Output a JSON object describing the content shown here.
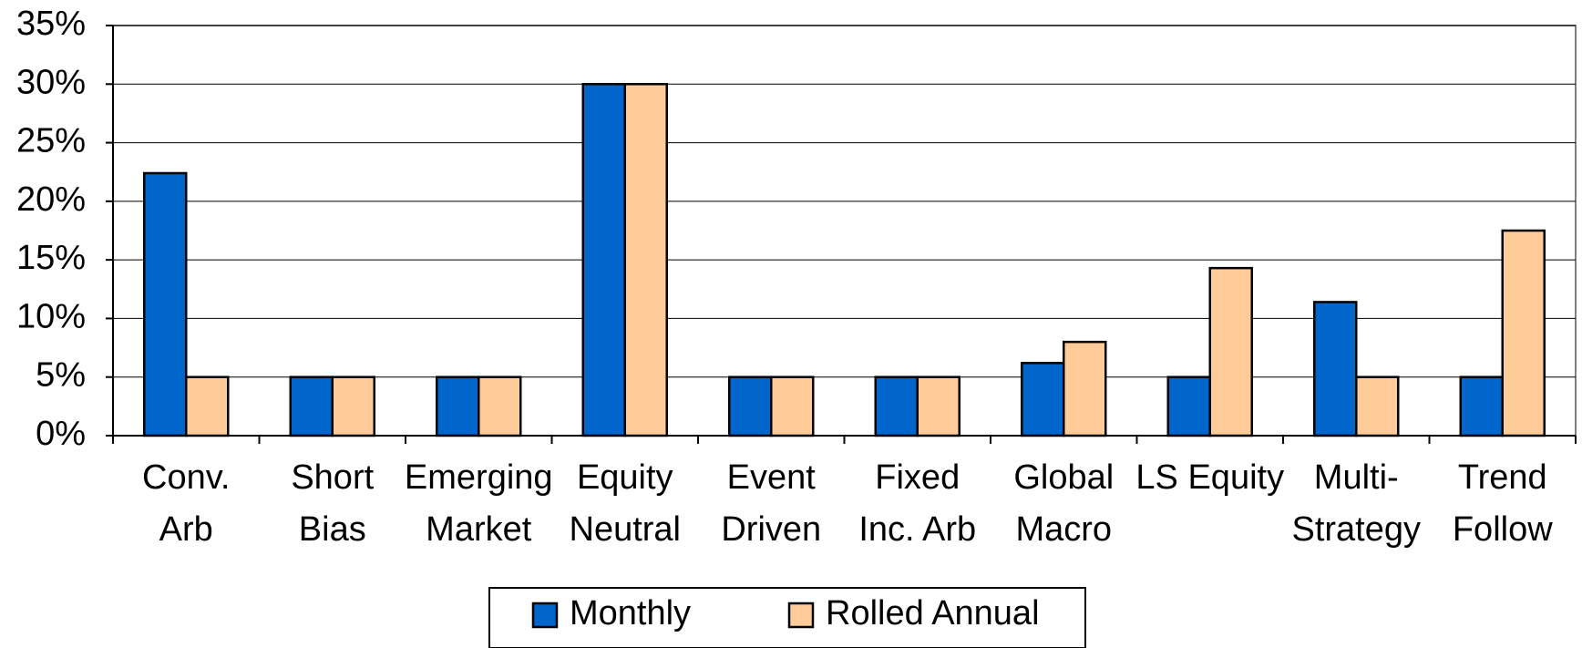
{
  "chart_data": {
    "type": "bar",
    "categories": [
      "Conv.\nArb",
      "Short\nBias",
      "Emerging\nMarket",
      "Equity\nNeutral",
      "Event\nDriven",
      "Fixed\nInc. Arb",
      "Global\nMacro",
      "LS Equity",
      "Multi-\nStrategy",
      "Trend\nFollow"
    ],
    "series": [
      {
        "name": "Monthly",
        "color": "#0066cc",
        "values": [
          22.4,
          5,
          5,
          30,
          5,
          5,
          6.2,
          5,
          11.4,
          5
        ]
      },
      {
        "name": "Rolled Annual",
        "color": "#ffcc99",
        "values": [
          5,
          5,
          5,
          30,
          5,
          5,
          8,
          14.3,
          5,
          17.5
        ]
      }
    ],
    "ylim": [
      0,
      35
    ],
    "yticks": [
      {
        "value": 0,
        "label": "0%"
      },
      {
        "value": 5,
        "label": "5%"
      },
      {
        "value": 10,
        "label": "10%"
      },
      {
        "value": 15,
        "label": "15%"
      },
      {
        "value": 20,
        "label": "20%"
      },
      {
        "value": 25,
        "label": "25%"
      },
      {
        "value": 30,
        "label": "30%"
      },
      {
        "value": 35,
        "label": "35%"
      }
    ],
    "grid": true,
    "legend": "bottom"
  }
}
